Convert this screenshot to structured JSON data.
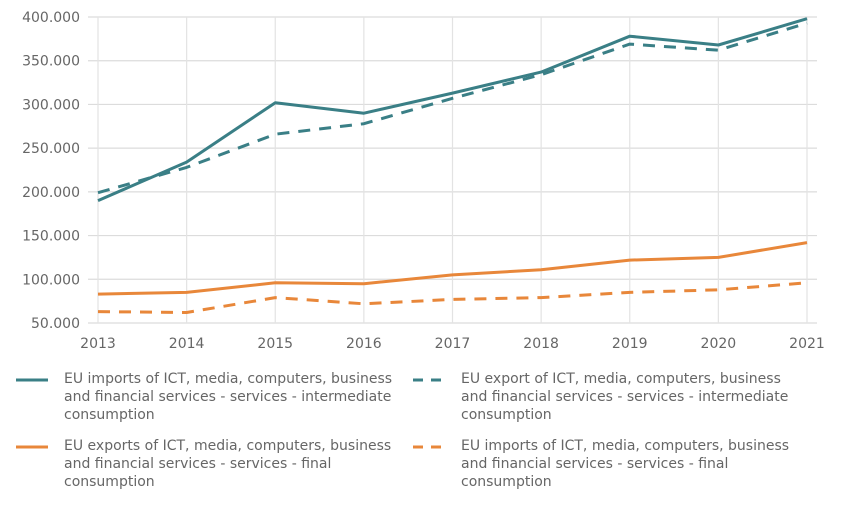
{
  "chart_data": {
    "type": "line",
    "title": "",
    "xlabel": "",
    "ylabel": "",
    "x": [
      "2013",
      "2014",
      "2015",
      "2016",
      "2017",
      "2018",
      "2019",
      "2020",
      "2021"
    ],
    "ylim": [
      50000,
      400000
    ],
    "yticks": [
      50000,
      100000,
      150000,
      200000,
      250000,
      300000,
      350000,
      400000
    ],
    "ytick_labels": [
      "50.000",
      "100.000",
      "150.000",
      "200.000",
      "250.000",
      "300.000",
      "350.000",
      "400.000"
    ],
    "grid": true,
    "legend_position": "bottom",
    "series": [
      {
        "name": "EU imports of ICT, media, computers, business and financial services - services - intermediate consumption",
        "color": "#3a7f86",
        "style": "solid",
        "values": [
          190000,
          234000,
          302000,
          290000,
          313000,
          337000,
          378000,
          368000,
          398000
        ]
      },
      {
        "name": "EU export of ICT, media, computers, business and financial services - services - intermediate consumption",
        "color": "#3a7f86",
        "style": "dashed",
        "values": [
          199000,
          228000,
          266000,
          278000,
          307000,
          334000,
          369000,
          362000,
          393000
        ]
      },
      {
        "name": "EU exports of ICT, media, computers, business and financial services - services - final consumption",
        "color": "#e8873a",
        "style": "solid",
        "values": [
          83000,
          85000,
          96000,
          95000,
          105000,
          111000,
          122000,
          125000,
          142000
        ]
      },
      {
        "name": "EU imports of ICT, media, computers, business and financial services - services - final consumption",
        "color": "#e8873a",
        "style": "dashed",
        "values": [
          63000,
          62000,
          79000,
          72000,
          77000,
          79000,
          85000,
          88000,
          96000
        ]
      }
    ]
  }
}
